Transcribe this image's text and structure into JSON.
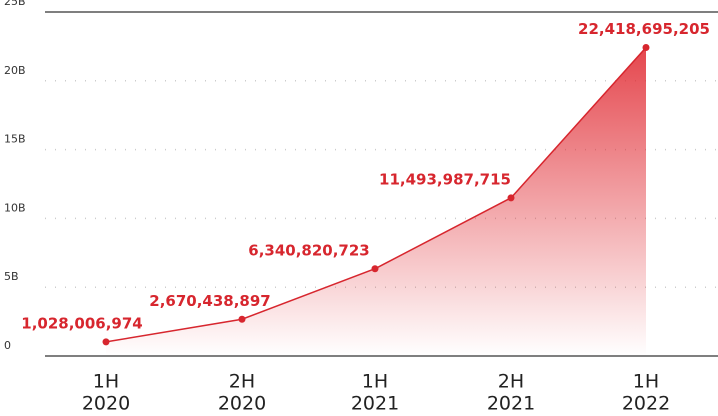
{
  "chart_data": {
    "type": "area",
    "categories": [
      [
        "1H",
        "2020"
      ],
      [
        "2H",
        "2020"
      ],
      [
        "1H",
        "2021"
      ],
      [
        "2H",
        "2021"
      ],
      [
        "1H",
        "2022"
      ]
    ],
    "values": [
      1028006974,
      2670438897,
      6340820723,
      11493987715,
      22418695205
    ],
    "value_labels": [
      "1,028,006,974",
      "2,670,438,897",
      "6,340,820,723",
      "11,493,987,715",
      "22,418,695,205"
    ],
    "color": "#d7262e",
    "ylim": [
      0,
      25000000000
    ],
    "yticks": [
      0,
      {
        "value": 5000000000,
        "label": "5B"
      },
      {
        "value": 10000000000,
        "label": "10B"
      },
      {
        "value": 15000000000,
        "label": "15B"
      },
      {
        "value": 20000000000,
        "label": "20B"
      },
      {
        "value": 25000000000,
        "label": "25B"
      }
    ],
    "grid": true
  }
}
